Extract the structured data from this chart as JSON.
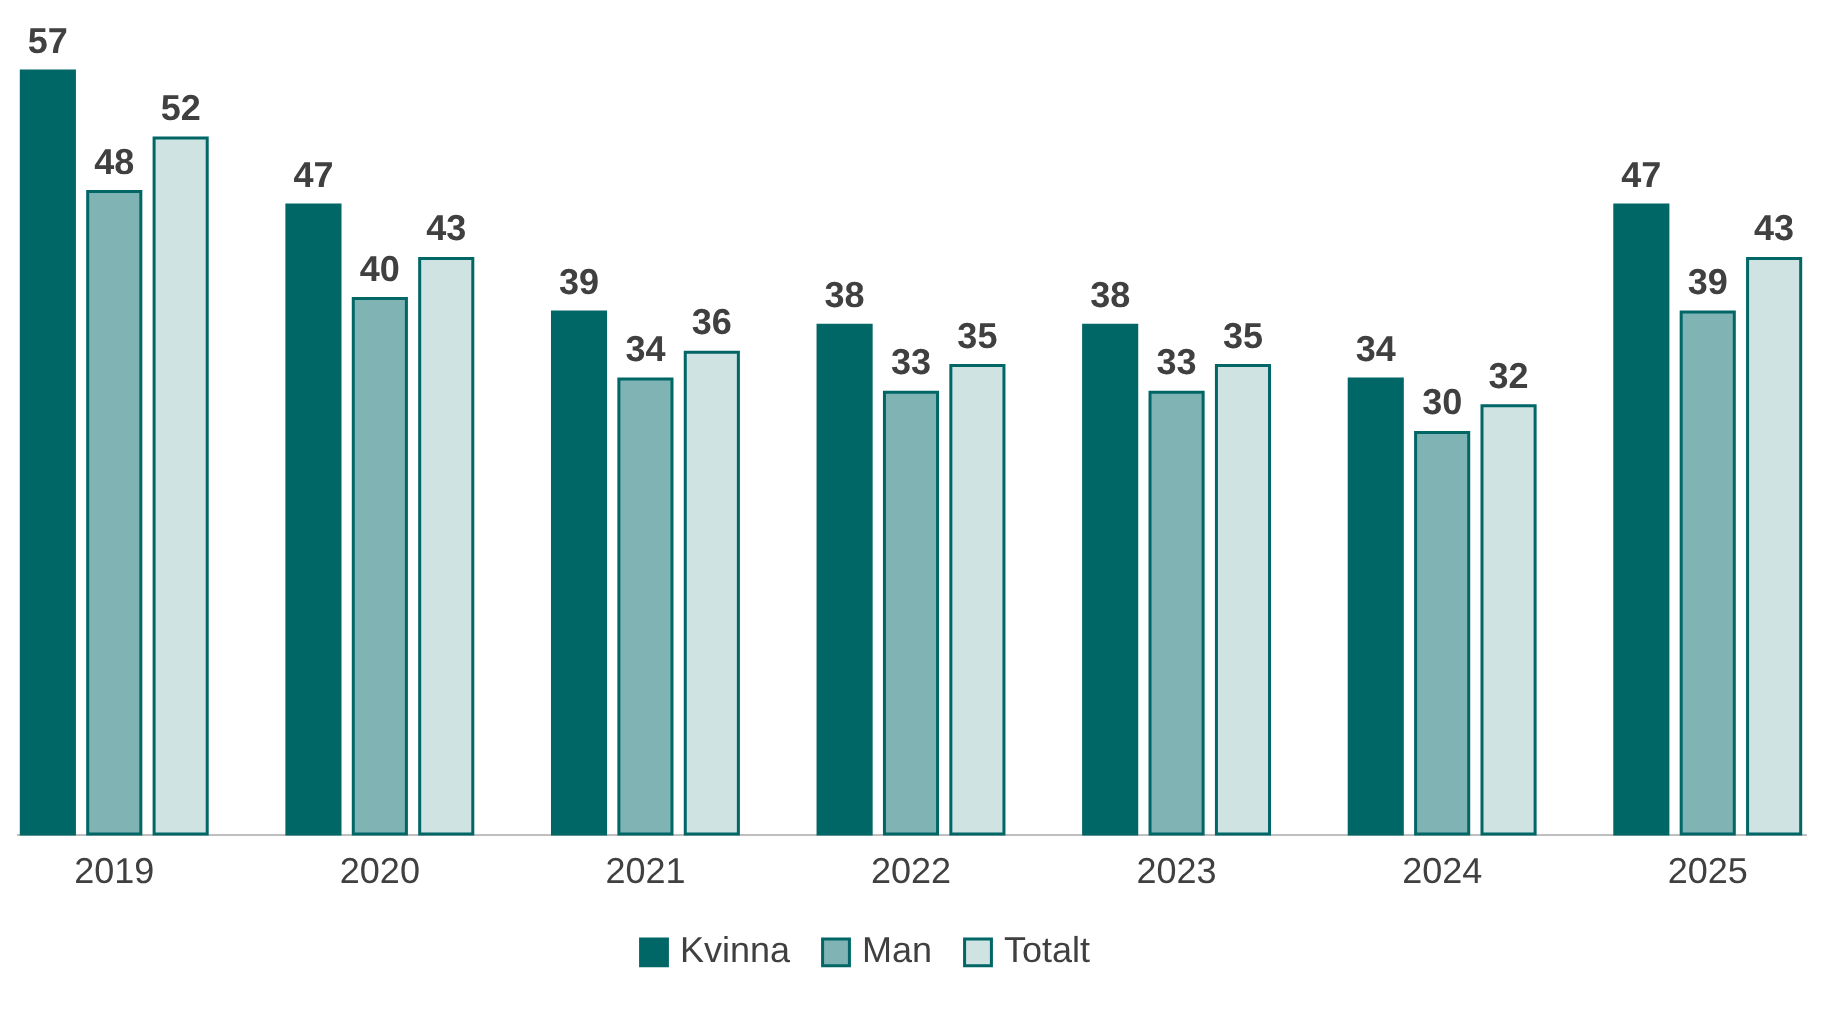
{
  "chart_data": {
    "type": "bar",
    "categories": [
      "2019",
      "2020",
      "2021",
      "2022",
      "2023",
      "2024",
      "2025"
    ],
    "series": [
      {
        "name": "Kvinna",
        "color": "#006666",
        "values": [
          57,
          47,
          39,
          38,
          38,
          34,
          47
        ]
      },
      {
        "name": "Man",
        "color": "#80b3b3",
        "values": [
          48,
          40,
          34,
          33,
          33,
          30,
          39
        ]
      },
      {
        "name": "Totalt",
        "color": "#cfe3e3",
        "values": [
          52,
          43,
          36,
          35,
          35,
          32,
          43
        ]
      }
    ],
    "data_labels": true,
    "legend": "bottom"
  }
}
